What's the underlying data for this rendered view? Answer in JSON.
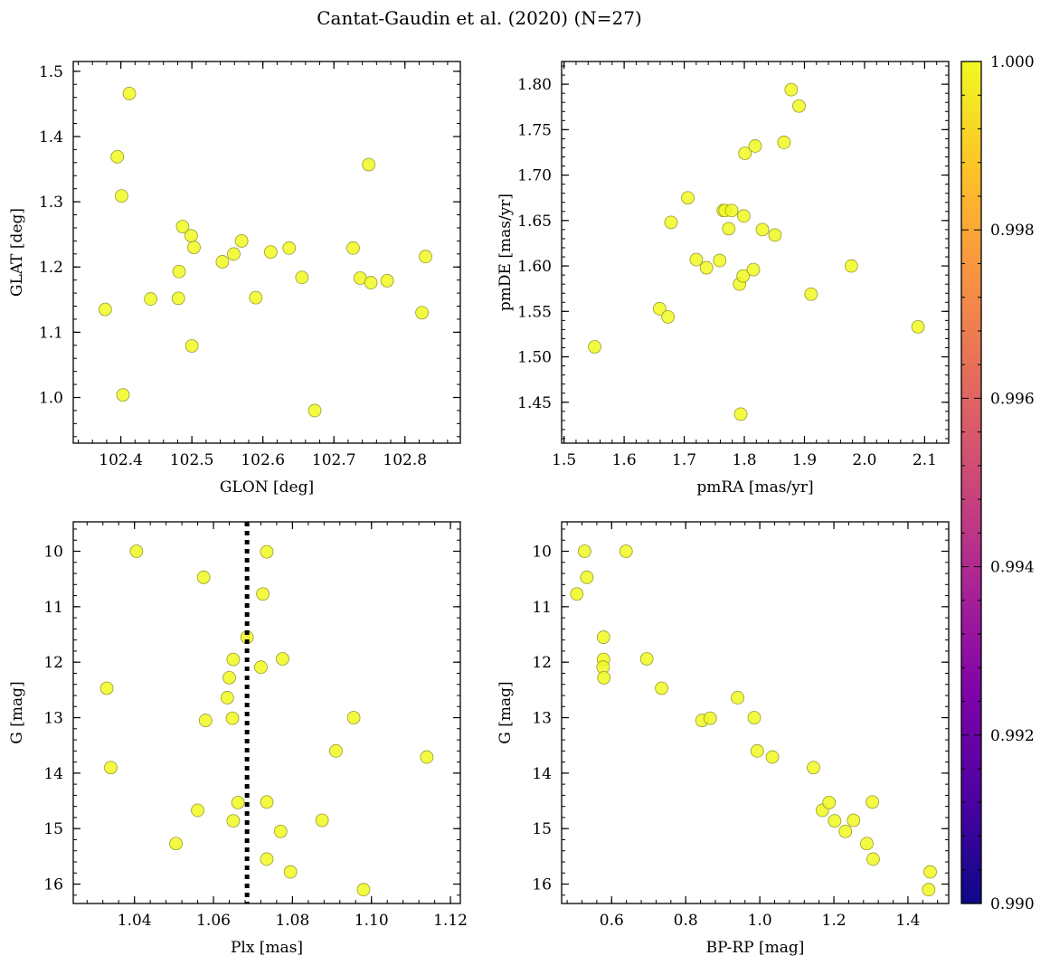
{
  "title": "Cantat-Gaudin et al. (2020) (N=27)",
  "colorbar": {
    "min": 0.99,
    "max": 1.0,
    "ticks": [
      "0.990",
      "0.992",
      "0.994",
      "0.996",
      "0.998",
      "1.000"
    ],
    "colormap": "plasma"
  },
  "point_color": "#f0f921",
  "chart_data": [
    {
      "type": "scatter",
      "xlabel": "GLON [deg]",
      "ylabel": "GLAT [deg]",
      "xlim": [
        102.333,
        102.878
      ],
      "ylim": [
        0.93,
        1.515
      ],
      "xticks": [
        102.4,
        102.5,
        102.6,
        102.7,
        102.8
      ],
      "xtick_labels": [
        "102.4",
        "102.5",
        "102.6",
        "102.7",
        "102.8"
      ],
      "yticks": [
        1.0,
        1.1,
        1.2,
        1.3,
        1.4,
        1.5
      ],
      "ytick_labels": [
        "1.0",
        "1.1",
        "1.2",
        "1.3",
        "1.4",
        "1.5"
      ],
      "x": [
        102.412,
        102.395,
        102.401,
        102.378,
        102.403,
        102.442,
        102.482,
        102.481,
        102.487,
        102.499,
        102.503,
        102.5,
        102.543,
        102.559,
        102.57,
        102.59,
        102.611,
        102.637,
        102.655,
        102.673,
        102.727,
        102.737,
        102.749,
        102.752,
        102.775,
        102.824,
        102.829
      ],
      "y": [
        1.466,
        1.369,
        1.309,
        1.135,
        1.004,
        1.151,
        1.193,
        1.152,
        1.262,
        1.248,
        1.23,
        1.079,
        1.208,
        1.22,
        1.24,
        1.153,
        1.223,
        1.229,
        1.184,
        0.98,
        1.229,
        1.183,
        1.357,
        1.176,
        1.179,
        1.13,
        1.216
      ]
    },
    {
      "type": "scatter",
      "xlabel": "pmRA [mas/yr]",
      "ylabel": "pmDE [mas/yr]",
      "xlim": [
        1.496,
        2.14
      ],
      "ylim": [
        1.405,
        1.825
      ],
      "xticks": [
        1.5,
        1.6,
        1.7,
        1.8,
        1.9,
        2.0,
        2.1
      ],
      "xtick_labels": [
        "1.5",
        "1.6",
        "1.7",
        "1.8",
        "1.9",
        "2.0",
        "2.1"
      ],
      "yticks": [
        1.45,
        1.5,
        1.55,
        1.6,
        1.65,
        1.7,
        1.75,
        1.8
      ],
      "ytick_labels": [
        "1.45",
        "1.50",
        "1.55",
        "1.60",
        "1.65",
        "1.70",
        "1.75",
        "1.80"
      ],
      "x": [
        1.551,
        1.659,
        1.673,
        1.678,
        1.706,
        1.72,
        1.737,
        1.759,
        1.765,
        1.768,
        1.774,
        1.779,
        1.792,
        1.794,
        1.798,
        1.799,
        1.801,
        1.815,
        1.818,
        1.83,
        1.851,
        1.866,
        1.878,
        1.891,
        1.911,
        1.978,
        2.089
      ],
      "y": [
        1.511,
        1.553,
        1.544,
        1.648,
        1.675,
        1.607,
        1.598,
        1.606,
        1.661,
        1.661,
        1.641,
        1.661,
        1.58,
        1.437,
        1.589,
        1.655,
        1.724,
        1.596,
        1.732,
        1.64,
        1.634,
        1.736,
        1.794,
        1.776,
        1.569,
        1.6,
        1.533
      ]
    },
    {
      "type": "scatter",
      "xlabel": "Plx [mas]",
      "ylabel": "G [mag]",
      "xlim": [
        1.0245,
        1.1225
      ],
      "ylim": [
        16.35,
        9.47
      ],
      "y_inverted": true,
      "xticks": [
        1.04,
        1.06,
        1.08,
        1.1,
        1.12
      ],
      "xtick_labels": [
        "1.04",
        "1.06",
        "1.08",
        "1.10",
        "1.12"
      ],
      "yticks": [
        10,
        11,
        12,
        13,
        14,
        15,
        16
      ],
      "ytick_labels": [
        "10",
        "11",
        "12",
        "13",
        "14",
        "15",
        "16"
      ],
      "vline": 1.0685,
      "x": [
        1.0405,
        1.0575,
        1.0735,
        1.0725,
        1.0685,
        1.065,
        1.072,
        1.0775,
        1.064,
        1.033,
        1.0635,
        1.058,
        1.0648,
        1.0955,
        1.091,
        1.114,
        1.034,
        1.0662,
        1.0735,
        1.056,
        1.065,
        1.0875,
        1.077,
        1.0505,
        1.0735,
        1.0795,
        1.098
      ],
      "y": [
        10.0,
        10.47,
        10.01,
        10.77,
        11.55,
        11.95,
        12.09,
        11.94,
        12.28,
        12.47,
        12.64,
        13.05,
        13.01,
        13.0,
        13.6,
        13.71,
        13.9,
        14.53,
        14.52,
        14.67,
        14.86,
        14.85,
        15.05,
        15.27,
        15.55,
        15.78,
        16.1
      ]
    },
    {
      "type": "scatter",
      "xlabel": "BP-RP [mag]",
      "ylabel": "G [mag]",
      "xlim": [
        0.465,
        1.51
      ],
      "ylim": [
        16.35,
        9.47
      ],
      "y_inverted": true,
      "xticks": [
        0.6,
        0.8,
        1.0,
        1.2,
        1.4
      ],
      "xtick_labels": [
        "0.6",
        "0.8",
        "1.0",
        "1.2",
        "1.4"
      ],
      "yticks": [
        10,
        11,
        12,
        13,
        14,
        15,
        16
      ],
      "ytick_labels": [
        "10",
        "11",
        "12",
        "13",
        "14",
        "15",
        "16"
      ],
      "x": [
        0.527,
        0.639,
        0.533,
        0.506,
        0.578,
        0.578,
        0.577,
        0.579,
        0.695,
        0.735,
        0.94,
        0.844,
        0.866,
        0.985,
        0.993,
        1.034,
        1.145,
        1.169,
        1.187,
        1.202,
        1.253,
        1.304,
        1.231,
        1.289,
        1.306,
        1.46,
        1.456
      ],
      "y": [
        10.0,
        10.0,
        10.47,
        10.77,
        11.55,
        11.95,
        12.09,
        12.28,
        11.94,
        12.47,
        12.64,
        13.05,
        13.01,
        13.0,
        13.6,
        13.71,
        13.9,
        14.67,
        14.53,
        14.86,
        14.85,
        14.52,
        15.05,
        15.27,
        15.55,
        15.78,
        16.1
      ]
    }
  ]
}
